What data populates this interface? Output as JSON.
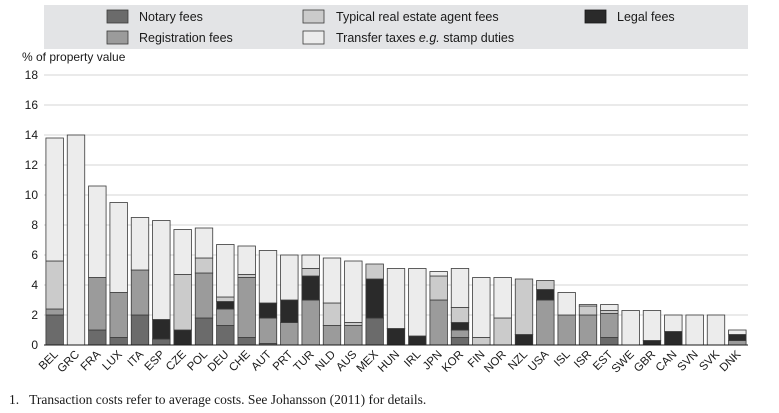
{
  "chart_data": {
    "type": "bar",
    "stacked": true,
    "ylabel": "% of property value",
    "ylim": [
      0,
      18
    ],
    "yticks": [
      0,
      2,
      4,
      6,
      8,
      10,
      12,
      14,
      16,
      18
    ],
    "grid": true,
    "legend_position": "top",
    "categories": [
      "BEL",
      "GRC",
      "FRA",
      "LUX",
      "ITA",
      "ESP",
      "CZE",
      "POL",
      "DEU",
      "CHE",
      "AUT",
      "PRT",
      "TUR",
      "NLD",
      "AUS",
      "MEX",
      "HUN",
      "IRL",
      "JPN",
      "KOR",
      "FIN",
      "NOR",
      "NZL",
      "USA",
      "ISL",
      "ISR",
      "EST",
      "SWE",
      "GBR",
      "CAN",
      "SVN",
      "SVK",
      "DNK"
    ],
    "series": [
      {
        "name": "Notary fees",
        "color": "#6b6b6b",
        "values": [
          2.0,
          0,
          1.0,
          0.5,
          2.0,
          0.4,
          0,
          1.8,
          1.3,
          0.5,
          0.1,
          0,
          0,
          0,
          0,
          1.8,
          0,
          0,
          0,
          0.5,
          0,
          0,
          0,
          0,
          0,
          0,
          0.5,
          0,
          0,
          0,
          0,
          0,
          0
        ]
      },
      {
        "name": "Registration fees",
        "color": "#9b9b9b",
        "values": [
          0.4,
          0,
          3.5,
          3.0,
          3.0,
          0,
          0,
          3.0,
          1.1,
          4.0,
          1.7,
          1.5,
          3.0,
          1.3,
          1.3,
          0,
          0,
          0,
          3.0,
          0.5,
          0,
          0,
          0,
          3.0,
          2.0,
          2.0,
          1.6,
          0,
          0,
          0,
          0,
          0,
          0.3
        ]
      },
      {
        "name": "Legal fees",
        "color": "#2a2a2a",
        "values": [
          0,
          0,
          0,
          0,
          0,
          1.3,
          1.0,
          0,
          0.5,
          0,
          1.0,
          1.5,
          1.6,
          0,
          0,
          2.6,
          1.1,
          0.6,
          0,
          0.5,
          0,
          0,
          0.7,
          0.7,
          0,
          0,
          0,
          0,
          0.3,
          0.9,
          0,
          0,
          0.4
        ]
      },
      {
        "name": "Typical real estate agent fees",
        "color": "#cbcbcb",
        "values": [
          3.2,
          0,
          0,
          0,
          0,
          0,
          3.7,
          1.0,
          0.3,
          0.2,
          0,
          0,
          0.5,
          1.5,
          0.2,
          1.0,
          0,
          0,
          1.6,
          1.0,
          0.5,
          1.8,
          3.7,
          0.6,
          0,
          0.6,
          0.2,
          0,
          0,
          0,
          0,
          0,
          0
        ]
      },
      {
        "name": "Transfer taxes e.g. stamp duties",
        "color": "#ececec",
        "values": [
          8.2,
          14.0,
          6.1,
          6.0,
          3.5,
          6.6,
          3.0,
          2.0,
          3.5,
          1.9,
          3.5,
          3.0,
          0.9,
          3.0,
          4.1,
          0,
          4.0,
          4.5,
          0.3,
          2.6,
          4.0,
          2.7,
          0,
          0,
          1.5,
          0.1,
          0.4,
          2.3,
          2.0,
          1.1,
          2.0,
          2.0,
          0.3
        ]
      }
    ]
  },
  "legend": {
    "items": [
      {
        "label": "Notary fees",
        "color": "#6b6b6b"
      },
      {
        "label": "Registration fees",
        "color": "#9b9b9b"
      },
      {
        "label": "Typical real estate agent fees",
        "color": "#cbcbcb"
      },
      {
        "label": "Transfer taxes ",
        "label_em": "e.g.",
        "label_rest": " stamp duties",
        "color": "#ececec"
      },
      {
        "label": "Legal fees",
        "color": "#2a2a2a"
      }
    ]
  },
  "footnote": {
    "number": "1.",
    "text": "Transaction costs refer to average costs. See Johansson (2011) for details."
  }
}
